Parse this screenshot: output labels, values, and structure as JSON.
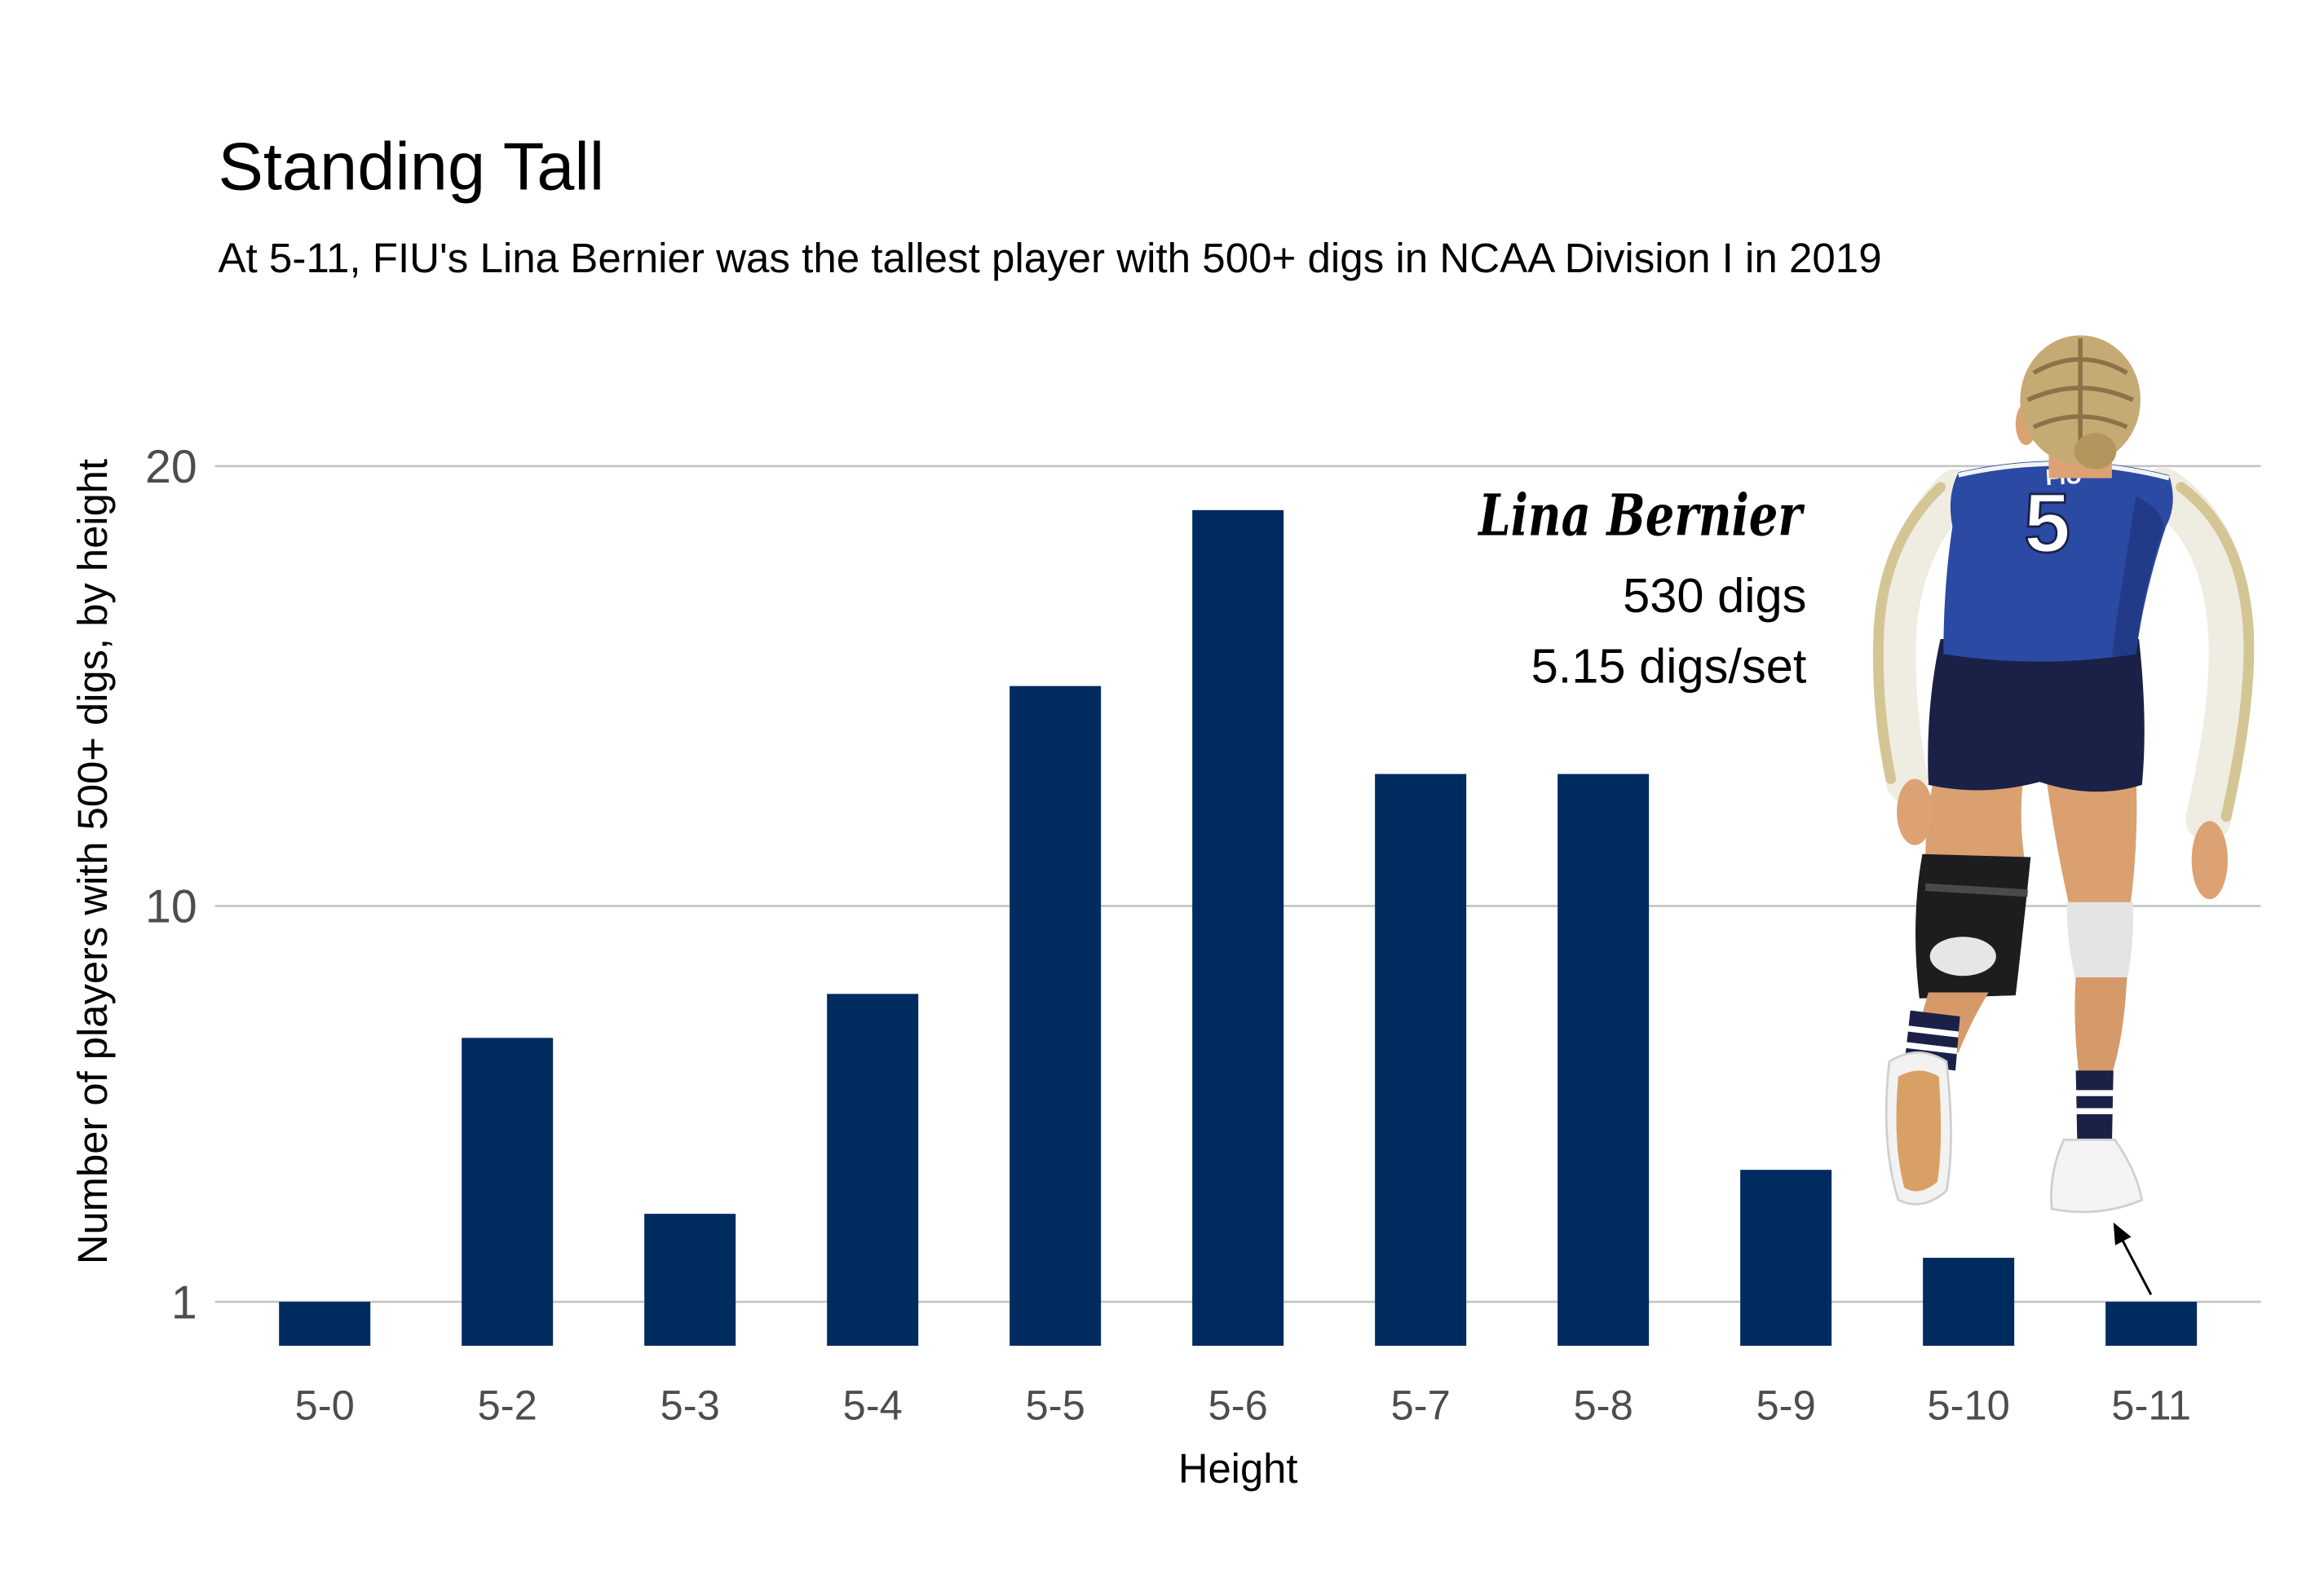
{
  "chart_data": {
    "type": "bar",
    "title": "Standing Tall",
    "subtitle": "At 5-11, FIU's Lina Bernier was the tallest player with 500+ digs in NCAA Division I in 2019",
    "xlabel": "Height",
    "ylabel": "Number of players with 500+ digs, by height",
    "categories": [
      "5-0",
      "5-2",
      "5-3",
      "5-4",
      "5-5",
      "5-6",
      "5-7",
      "5-8",
      "5-9",
      "5-10",
      "5-11"
    ],
    "values": [
      1,
      7,
      3,
      8,
      15,
      19,
      13,
      13,
      4,
      2,
      1
    ],
    "ylim": [
      0,
      20
    ],
    "yticks": [
      1,
      10,
      20
    ],
    "grid": "horizontal major gridlines",
    "legend": "none",
    "colors": {
      "bar": "#002b5f",
      "grid": "#c4c4c4",
      "tick_label": "#4d4d4d",
      "text": "#000000"
    },
    "annotation": {
      "category": "5-11",
      "name": "Lina Bernier",
      "lines": [
        "530 digs",
        "5.15 digs/set"
      ]
    }
  },
  "photo": {
    "jersey_text": "FIU",
    "jersey_number": "5"
  }
}
